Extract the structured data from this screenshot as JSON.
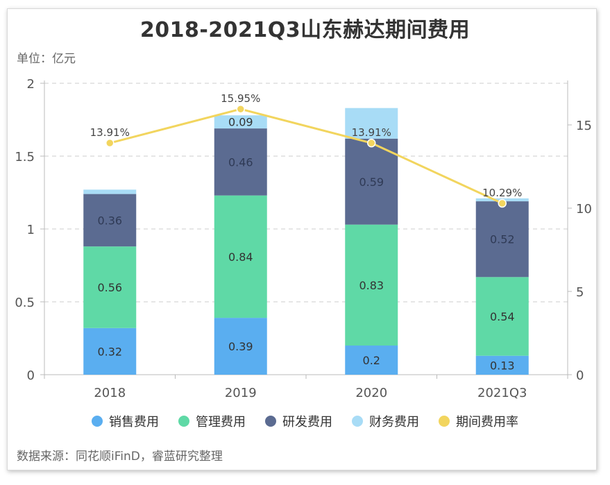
{
  "title": "2018-2021Q3山东赫达期间费用",
  "unit_label": "单位：亿元",
  "source": "数据来源：同花顺iFinD，睿蓝研究整理",
  "colors": {
    "sales": "#5aaef0",
    "admin": "#5fd9a6",
    "rnd": "#5b6b91",
    "finance": "#a8dcf6",
    "rate": "#f2d55e",
    "grid": "#cccccc",
    "axis": "#555555"
  },
  "chart_data": {
    "type": "bar",
    "stacked": true,
    "categories": [
      "2018",
      "2019",
      "2020",
      "2021Q3"
    ],
    "series": [
      {
        "name": "销售费用",
        "key": "sales",
        "values": [
          0.32,
          0.39,
          0.2,
          0.13
        ],
        "labels": [
          "0.32",
          "0.39",
          "0.2",
          "0.13"
        ]
      },
      {
        "name": "管理费用",
        "key": "admin",
        "values": [
          0.56,
          0.84,
          0.83,
          0.54
        ],
        "labels": [
          "0.56",
          "0.84",
          "0.83",
          "0.54"
        ]
      },
      {
        "name": "研发费用",
        "key": "rnd",
        "values": [
          0.36,
          0.46,
          0.59,
          0.52
        ],
        "labels": [
          "0.36",
          "0.46",
          "0.59",
          "0.52"
        ]
      },
      {
        "name": "财务费用",
        "key": "finance",
        "values": [
          0.03,
          0.09,
          0.21,
          0.02
        ],
        "labels": [
          "",
          "0.09",
          "",
          ""
        ]
      }
    ],
    "line_series": {
      "name": "期间费用率",
      "key": "rate",
      "values": [
        13.91,
        15.95,
        13.91,
        10.29
      ],
      "labels": [
        "13.91%",
        "15.95%",
        "13.91%",
        "10.29%"
      ]
    },
    "y_left": {
      "min": 0,
      "max": 2,
      "ticks": [
        "0",
        "0.5",
        "1",
        "1.5",
        "2"
      ],
      "tick_values": [
        0,
        0.5,
        1,
        1.5,
        2
      ]
    },
    "y_right": {
      "min": 0,
      "max": 17.5,
      "ticks": [
        "0",
        "5",
        "10",
        "15"
      ],
      "tick_values": [
        0,
        5,
        10,
        15
      ]
    },
    "grid": true,
    "legend_position": "bottom"
  }
}
